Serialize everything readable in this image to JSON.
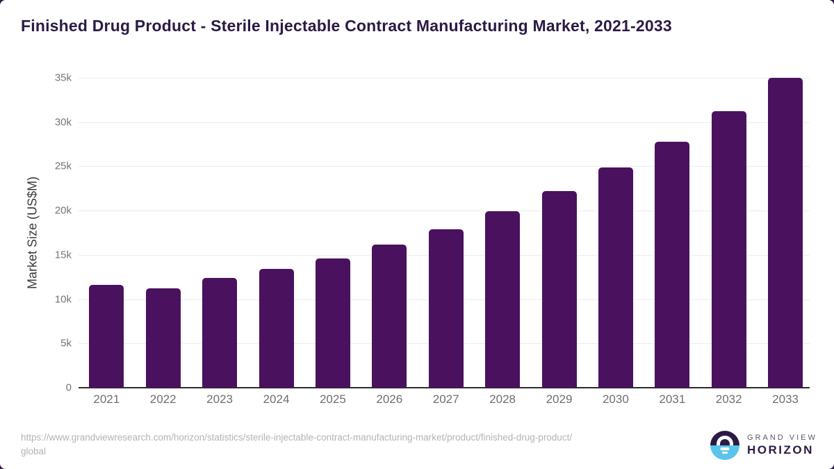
{
  "page": {
    "title": "Finished Drug Product - Sterile Injectable Contract Manufacturing Market, 2021-2033",
    "source_url": "https://www.grandviewresearch.com/horizon/statistics/sterile-injectable-contract-manufacturing-market/product/finished-drug-product/global"
  },
  "branding": {
    "name_top": "GRAND VIEW",
    "name_bottom": "HORIZON",
    "icon": "horizon-sunrise-icon",
    "colors": {
      "purple": "#2b1a44",
      "blue": "#5ac4ea"
    }
  },
  "chart_data": {
    "type": "bar",
    "title": "Finished Drug Product - Sterile Injectable Contract Manufacturing Market, 2021-2033",
    "xlabel": "",
    "ylabel": "Market Size (US$M)",
    "categories": [
      "2021",
      "2022",
      "2023",
      "2024",
      "2025",
      "2026",
      "2027",
      "2028",
      "2029",
      "2030",
      "2031",
      "2032",
      "2033"
    ],
    "values": [
      11600,
      11200,
      12400,
      13400,
      14600,
      16200,
      17900,
      19900,
      22200,
      24900,
      27800,
      31200,
      35000
    ],
    "ylim": [
      0,
      35000
    ],
    "ytick_step": 5000,
    "ytick_labels": [
      "0",
      "5k",
      "10k",
      "15k",
      "20k",
      "25k",
      "30k",
      "35k"
    ],
    "grid": true,
    "legend_position": "none",
    "bar_color": "#4a115e",
    "tick_color": "#757575"
  }
}
